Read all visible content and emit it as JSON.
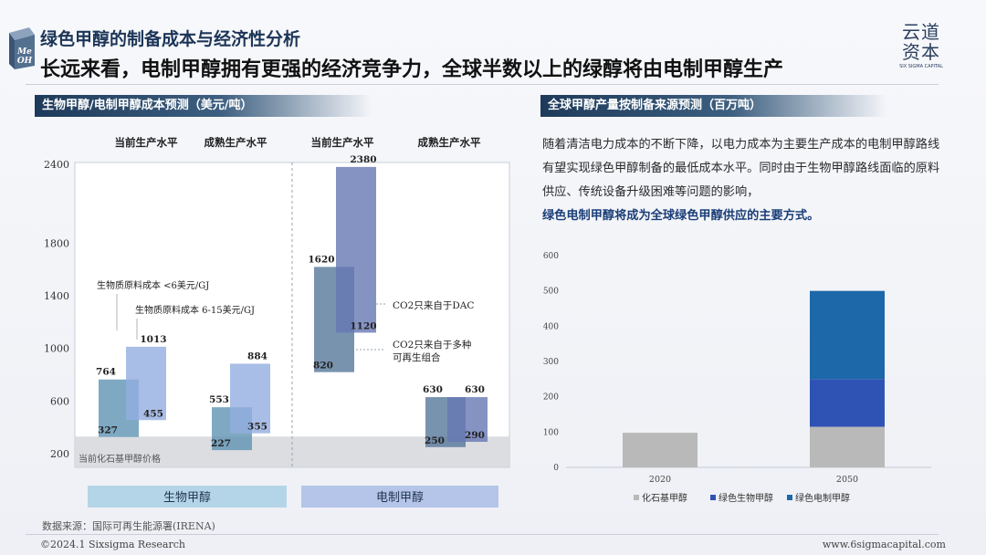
{
  "header": {
    "title": "绿色甲醇的制备成本与经济性分析",
    "subtitle": "长远来看，电制甲醇拥有更强的经济竞争力，全球半数以上的绿醇将由电制甲醇生产",
    "logo_cube_text": "Me OH",
    "brand_cn": "云道资本",
    "brand_en": "SIX SIGMA CAPITAL"
  },
  "sections": {
    "left_title": "生物甲醇/电制甲醇成本预测（美元/吨）",
    "right_title": "全球甲醇产量按制备来源预测（百万吨）"
  },
  "description": {
    "text": "随着清洁电力成本的不断下降，以电力成本为主要生产成本的电制甲醇路线有望实现绿色甲醇制备的最低成本水平。同时由于生物甲醇路线面临的原料供应、传统设备升级困难等问题的影响，",
    "highlight": "绿色电制甲醇将成为全球绿色甲醇供应的主要方式。"
  },
  "chart_data": [
    {
      "type": "bar",
      "title": "生物甲醇/电制甲醇成本预测（美元/吨）",
      "ylim": [
        200,
        2400
      ],
      "yticks": [
        200,
        600,
        1000,
        1400,
        1800,
        2400
      ],
      "column_headers": [
        "当前生产水平",
        "成熟生产水平",
        "当前生产水平",
        "成熟生产水平"
      ],
      "groups": [
        "生物甲醇",
        "电制甲醇"
      ],
      "baseline_band": {
        "label": "当前化石基甲醇价格",
        "range": [
          100,
          330
        ]
      },
      "ranges": [
        {
          "column": 0,
          "label_low": "327",
          "label_high": "764",
          "low": 327,
          "high": 764,
          "color": "#5f93b3"
        },
        {
          "column": 0,
          "label_low": "455",
          "label_high": "1013",
          "low": 455,
          "high": 1013,
          "color": "#93aee0"
        },
        {
          "column": 1,
          "label_low": "227",
          "label_high": "553",
          "low": 227,
          "high": 553,
          "color": "#5f93b3"
        },
        {
          "column": 1,
          "label_low": "355",
          "label_high": "884",
          "low": 355,
          "high": 884,
          "color": "#93aee0"
        },
        {
          "column": 2,
          "label_low": "820",
          "label_high": "1620",
          "low": 820,
          "high": 1620,
          "color": "#56789a"
        },
        {
          "column": 2,
          "label_low": "1120",
          "label_high": "2380",
          "low": 1120,
          "high": 2380,
          "color": "#6778b4"
        },
        {
          "column": 3,
          "label_low": "250",
          "label_high": "630",
          "low": 250,
          "high": 630,
          "color": "#56789a"
        },
        {
          "column": 3,
          "label_low": "290",
          "label_high": "630",
          "low": 290,
          "high": 630,
          "color": "#6778b4"
        }
      ],
      "annotations": [
        {
          "text": "生物质原料成本 <6美元/GJ",
          "target_range": 0
        },
        {
          "text": "生物质原料成本 6-15美元/GJ",
          "target_range": 1
        },
        {
          "text": "CO2只来自于DAC",
          "target_range": 5
        },
        {
          "text": "CO2只来自于多种",
          "target_range": 4
        },
        {
          "text": "可再生组合",
          "target_range": 4
        }
      ]
    },
    {
      "type": "bar",
      "stacked": true,
      "title": "全球甲醇产量按制备来源预测（百万吨）",
      "categories": [
        "2020",
        "2050"
      ],
      "ylim": [
        0,
        600
      ],
      "yticks": [
        0,
        100,
        200,
        300,
        400,
        500,
        600
      ],
      "legend_position": "bottom",
      "series": [
        {
          "name": "化石基甲醇",
          "values": [
            98,
            115
          ],
          "color": "#b9b9b9"
        },
        {
          "name": "绿色生物甲醇",
          "values": [
            0,
            135
          ],
          "color": "#2f53b5"
        },
        {
          "name": "绿色电制甲醇",
          "values": [
            0,
            250
          ],
          "color": "#1c68a9"
        }
      ]
    }
  ],
  "footer": {
    "source": "数据来源：国际可再生能源署(IRENA)",
    "copyright": "©2024.1 Sixsigma Research",
    "website": "www.6sigmacapital.com"
  }
}
